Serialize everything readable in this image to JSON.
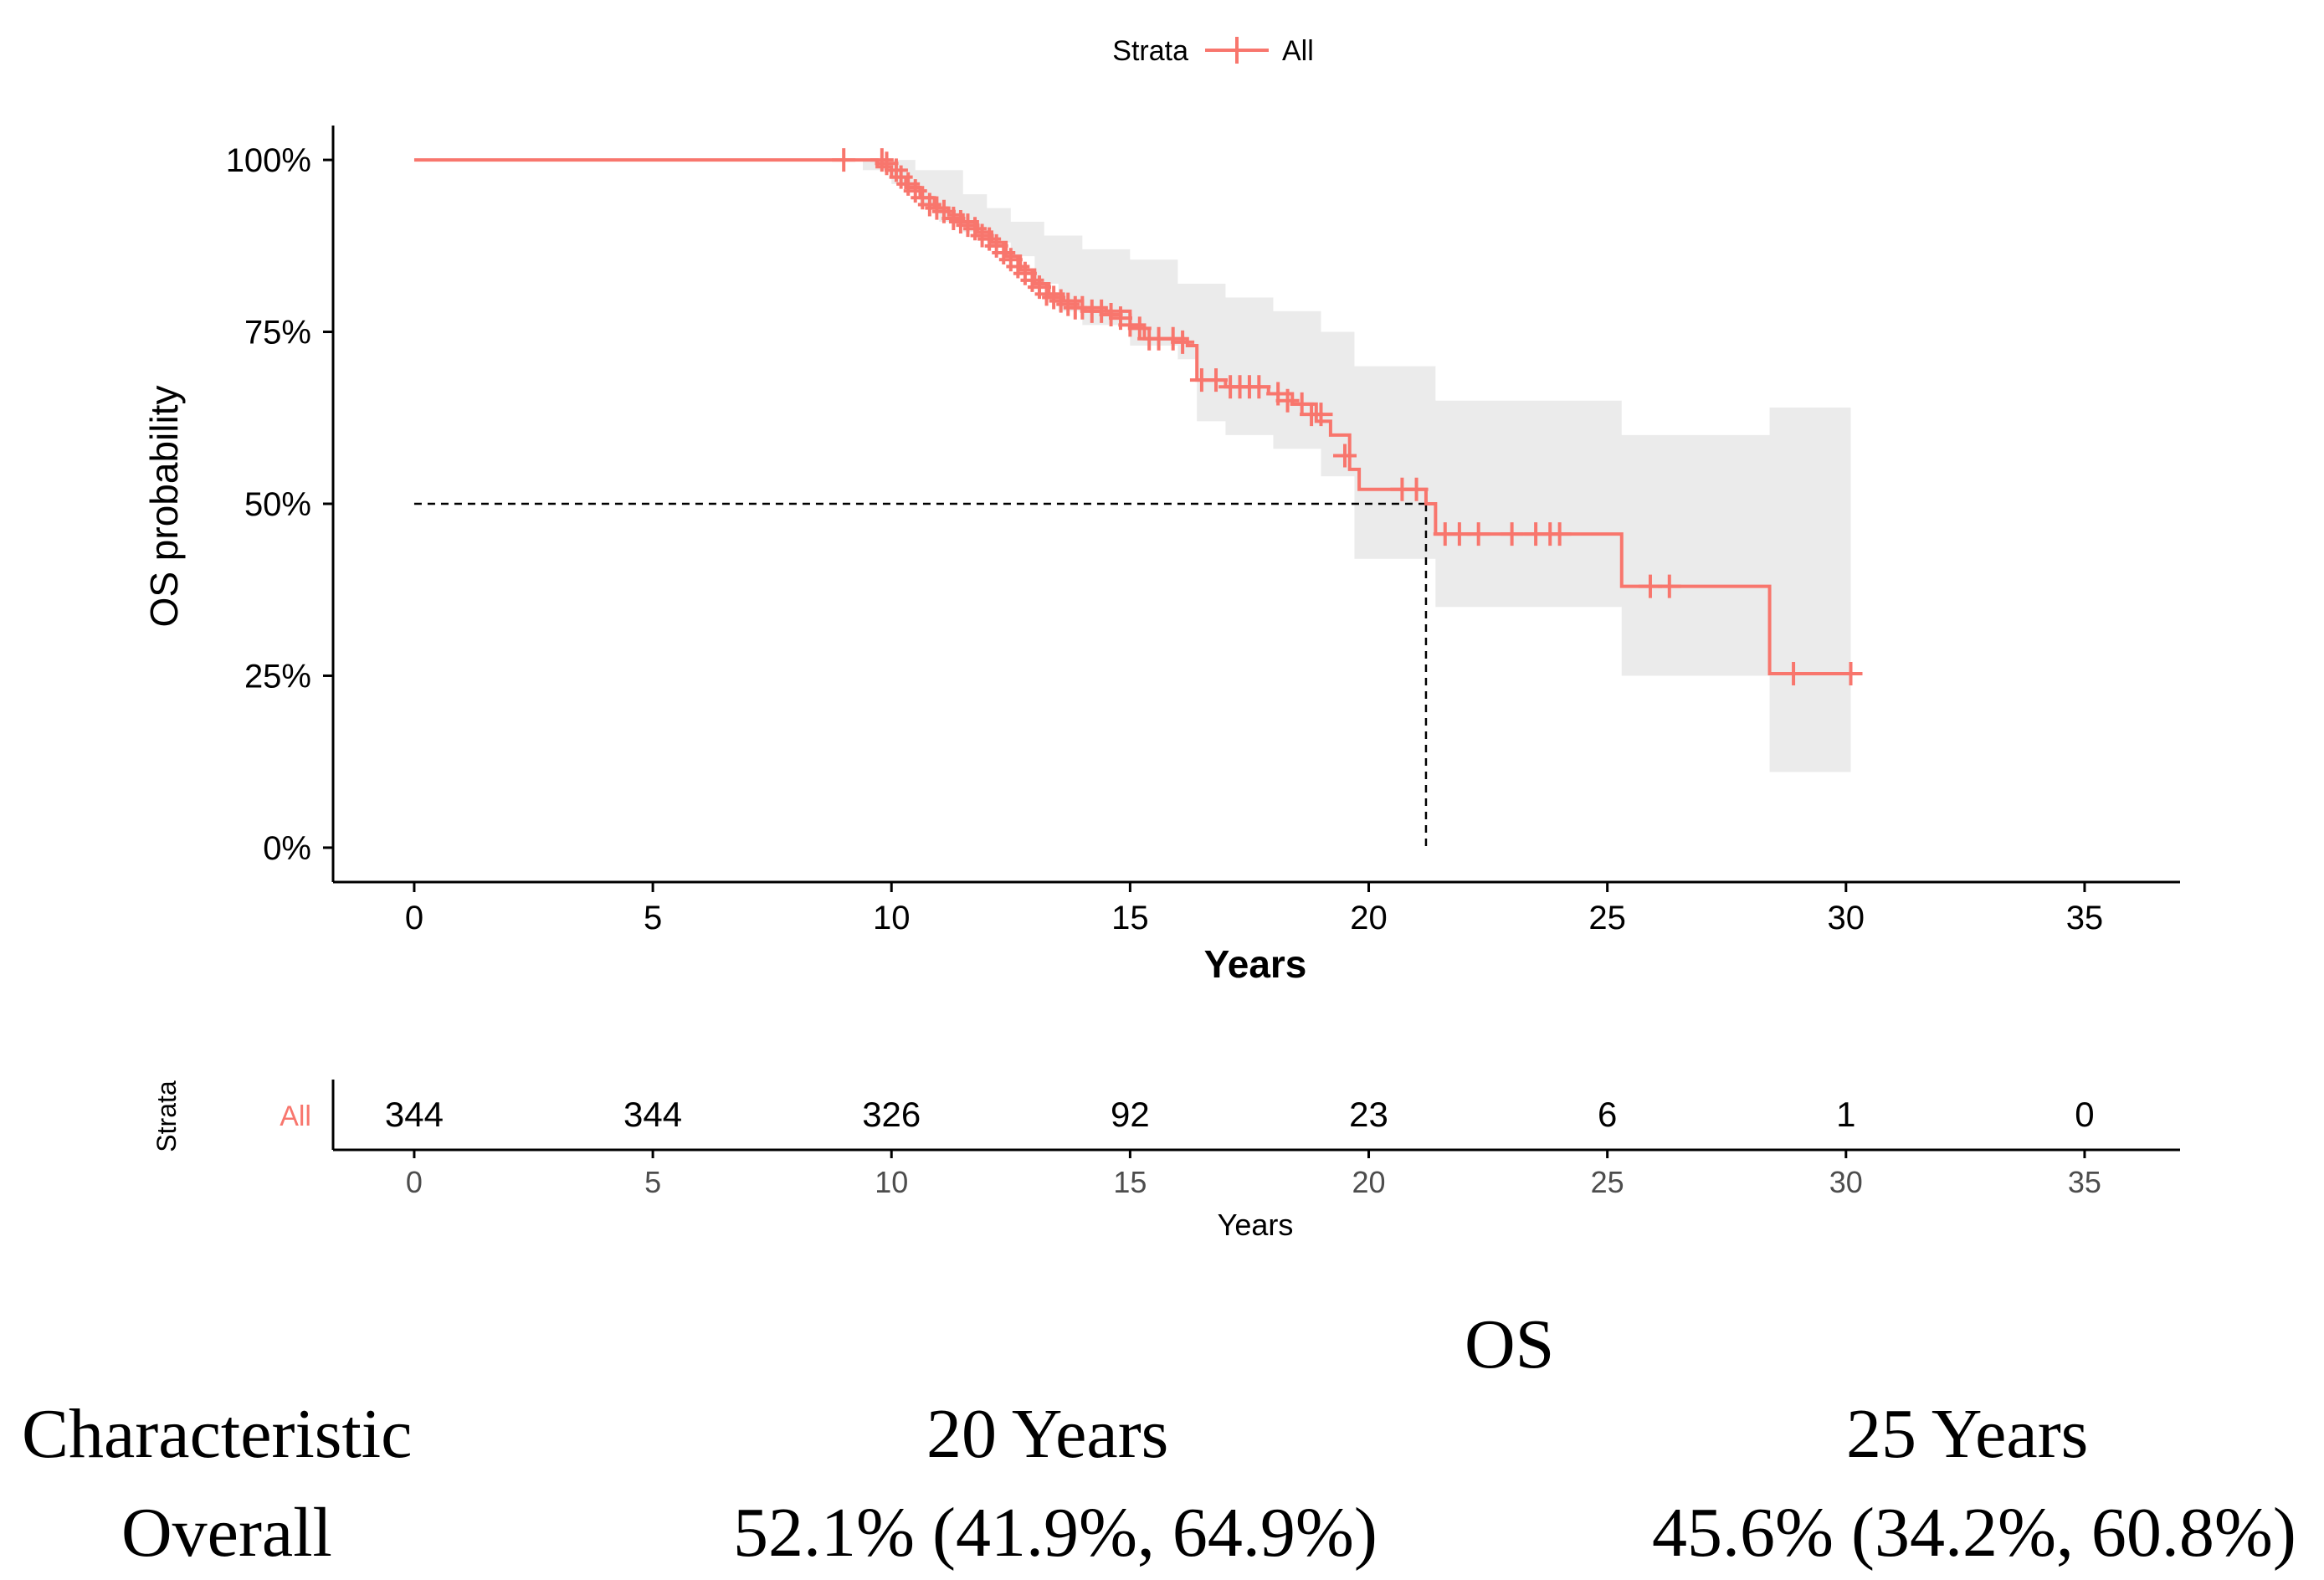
{
  "chart_data": {
    "type": "line",
    "subtype": "kaplan-meier",
    "legend": {
      "title": "Strata",
      "entries": [
        "All"
      ],
      "placement": "top-center"
    },
    "colors": {
      "curve": "#F8766D",
      "ci_band": "#EBEBEB",
      "risk_label": "#F8766D",
      "axis": "#000000",
      "median": "#000000"
    },
    "xlabel": "Years",
    "ylabel": "OS probability",
    "xlim": [
      -1.7,
      37
    ],
    "ylim": [
      -0.05,
      1.05
    ],
    "x_ticks": [
      0,
      5,
      10,
      15,
      20,
      25,
      30,
      35
    ],
    "x_tick_labels": [
      "0",
      "5",
      "10",
      "15",
      "20",
      "25",
      "30",
      "35"
    ],
    "y_ticks": [
      0,
      0.25,
      0.5,
      0.75,
      1.0
    ],
    "y_tick_labels": [
      "0%",
      "25%",
      "50%",
      "75%",
      "100%"
    ],
    "grid": false,
    "survival_steps": [
      [
        0,
        1.0
      ],
      [
        9.4,
        1.0
      ],
      [
        9.7,
        0.99
      ],
      [
        10.0,
        0.975
      ],
      [
        10.3,
        0.96
      ],
      [
        10.6,
        0.945
      ],
      [
        10.9,
        0.93
      ],
      [
        11.2,
        0.92
      ],
      [
        11.5,
        0.91
      ],
      [
        11.8,
        0.895
      ],
      [
        12.1,
        0.88
      ],
      [
        12.4,
        0.86
      ],
      [
        12.7,
        0.84
      ],
      [
        13.0,
        0.82
      ],
      [
        13.3,
        0.805
      ],
      [
        13.6,
        0.795
      ],
      [
        14.0,
        0.785
      ],
      [
        14.5,
        0.78
      ],
      [
        15.0,
        0.76
      ],
      [
        15.3,
        0.74
      ],
      [
        16.2,
        0.73
      ],
      [
        16.4,
        0.68
      ],
      [
        17.0,
        0.67
      ],
      [
        17.9,
        0.66
      ],
      [
        18.4,
        0.645
      ],
      [
        18.9,
        0.62
      ],
      [
        19.2,
        0.6
      ],
      [
        19.6,
        0.55
      ],
      [
        19.8,
        0.521
      ],
      [
        21.2,
        0.5
      ],
      [
        21.4,
        0.456
      ],
      [
        25.3,
        0.38
      ],
      [
        28.4,
        0.253
      ],
      [
        30.1,
        0.253
      ]
    ],
    "ci_upper_steps": [
      [
        9.4,
        1.0
      ],
      [
        10.5,
        0.985
      ],
      [
        11.5,
        0.95
      ],
      [
        12.0,
        0.93
      ],
      [
        12.5,
        0.91
      ],
      [
        13.2,
        0.89
      ],
      [
        14.0,
        0.87
      ],
      [
        15.0,
        0.855
      ],
      [
        16.0,
        0.82
      ],
      [
        17.0,
        0.8
      ],
      [
        18.0,
        0.78
      ],
      [
        19.0,
        0.75
      ],
      [
        19.7,
        0.7
      ],
      [
        21.4,
        0.65
      ],
      [
        25.3,
        0.6
      ],
      [
        28.4,
        0.64
      ],
      [
        30.1,
        0.64
      ]
    ],
    "ci_lower_steps": [
      [
        9.4,
        0.985
      ],
      [
        10.0,
        0.965
      ],
      [
        10.6,
        0.935
      ],
      [
        11.0,
        0.91
      ],
      [
        11.5,
        0.895
      ],
      [
        12.0,
        0.88
      ],
      [
        12.5,
        0.86
      ],
      [
        13.0,
        0.82
      ],
      [
        13.5,
        0.78
      ],
      [
        14.0,
        0.76
      ],
      [
        15.0,
        0.73
      ],
      [
        16.0,
        0.71
      ],
      [
        16.4,
        0.62
      ],
      [
        17.0,
        0.6
      ],
      [
        18.0,
        0.58
      ],
      [
        19.0,
        0.54
      ],
      [
        19.7,
        0.42
      ],
      [
        21.4,
        0.35
      ],
      [
        25.3,
        0.25
      ],
      [
        28.4,
        0.11
      ],
      [
        30.1,
        0.11
      ]
    ],
    "censor_marks": [
      [
        9.0,
        1.0
      ],
      [
        9.8,
        1.0
      ],
      [
        9.9,
        0.995
      ],
      [
        10.1,
        0.985
      ],
      [
        10.2,
        0.975
      ],
      [
        10.35,
        0.965
      ],
      [
        10.5,
        0.955
      ],
      [
        10.65,
        0.945
      ],
      [
        10.8,
        0.935
      ],
      [
        10.95,
        0.93
      ],
      [
        11.1,
        0.925
      ],
      [
        11.3,
        0.915
      ],
      [
        11.45,
        0.91
      ],
      [
        11.6,
        0.905
      ],
      [
        11.75,
        0.9
      ],
      [
        11.9,
        0.89
      ],
      [
        12.05,
        0.885
      ],
      [
        12.2,
        0.875
      ],
      [
        12.35,
        0.865
      ],
      [
        12.5,
        0.855
      ],
      [
        12.65,
        0.845
      ],
      [
        12.8,
        0.835
      ],
      [
        12.95,
        0.825
      ],
      [
        13.1,
        0.815
      ],
      [
        13.25,
        0.805
      ],
      [
        13.4,
        0.8
      ],
      [
        13.55,
        0.795
      ],
      [
        13.7,
        0.79
      ],
      [
        13.85,
        0.785
      ],
      [
        14.0,
        0.785
      ],
      [
        14.2,
        0.78
      ],
      [
        14.4,
        0.78
      ],
      [
        14.6,
        0.775
      ],
      [
        14.8,
        0.77
      ],
      [
        15.0,
        0.76
      ],
      [
        15.2,
        0.755
      ],
      [
        15.4,
        0.74
      ],
      [
        15.6,
        0.74
      ],
      [
        15.9,
        0.74
      ],
      [
        16.1,
        0.735
      ],
      [
        16.5,
        0.68
      ],
      [
        16.8,
        0.68
      ],
      [
        17.1,
        0.67
      ],
      [
        17.3,
        0.67
      ],
      [
        17.5,
        0.67
      ],
      [
        17.7,
        0.67
      ],
      [
        18.1,
        0.66
      ],
      [
        18.3,
        0.65
      ],
      [
        18.6,
        0.645
      ],
      [
        18.8,
        0.63
      ],
      [
        19.0,
        0.63
      ],
      [
        19.5,
        0.57
      ],
      [
        20.7,
        0.521
      ],
      [
        21.0,
        0.521
      ],
      [
        21.6,
        0.456
      ],
      [
        21.9,
        0.456
      ],
      [
        22.3,
        0.456
      ],
      [
        23.0,
        0.456
      ],
      [
        23.5,
        0.456
      ],
      [
        23.8,
        0.456
      ],
      [
        24.0,
        0.456
      ],
      [
        25.9,
        0.38
      ],
      [
        26.3,
        0.38
      ],
      [
        28.9,
        0.253
      ],
      [
        30.1,
        0.253
      ]
    ],
    "median_survival": {
      "x": 21.2,
      "y": 0.5
    },
    "risk_table": {
      "ylabel": "Strata",
      "xlabel": "Years",
      "row_label": "All",
      "times": [
        "0",
        "5",
        "10",
        "15",
        "20",
        "25",
        "30",
        "35"
      ],
      "n_at_risk": [
        "344",
        "344",
        "326",
        "92",
        "23",
        "6",
        "1",
        "0"
      ]
    }
  },
  "table": {
    "group_header": "OS",
    "columns": [
      "Characteristic",
      "20 Years",
      "25 Years"
    ],
    "rows": [
      {
        "label": "Overall",
        "values": [
          "52.1% (41.9%, 64.9%)",
          "45.6% (34.2%, 60.8%)"
        ]
      }
    ]
  }
}
